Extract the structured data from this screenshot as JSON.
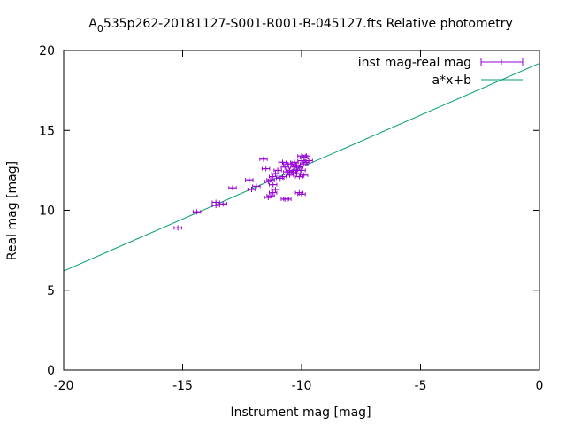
{
  "chart_data": {
    "type": "scatter",
    "title": {
      "prefix": "A",
      "subscript": "0",
      "rest": "535p262-20181127-S001-R001-B-045127.fts Relative photometry"
    },
    "xlabel": "Instrument mag [mag]",
    "ylabel": "Real mag [mag]",
    "xlim": [
      -20,
      0
    ],
    "ylim": [
      0,
      20
    ],
    "xticks": [
      -20,
      -15,
      -10,
      -5,
      0
    ],
    "yticks": [
      0,
      5,
      10,
      15,
      20
    ],
    "grid": false,
    "legend_position": "top-right",
    "colors": {
      "points": "#9400d3",
      "fit": "#009e73",
      "axes": "#000000"
    },
    "series": [
      {
        "name": "inst mag-real mag",
        "kind": "points-with-xerror",
        "points": [
          [
            -15.2,
            8.9
          ],
          [
            -14.4,
            9.9
          ],
          [
            -13.6,
            10.3
          ],
          [
            -13.6,
            10.5
          ],
          [
            -13.3,
            10.4
          ],
          [
            -12.9,
            11.4
          ],
          [
            -12.2,
            11.9
          ],
          [
            -12.1,
            11.3
          ],
          [
            -11.9,
            11.5
          ],
          [
            -11.6,
            13.2
          ],
          [
            -11.5,
            12.6
          ],
          [
            -11.4,
            10.8
          ],
          [
            -11.3,
            10.9
          ],
          [
            -11.4,
            11.8
          ],
          [
            -11.3,
            11.9
          ],
          [
            -11.2,
            11.6
          ],
          [
            -11.2,
            12.1
          ],
          [
            -11.2,
            11.1
          ],
          [
            -11.1,
            11.3
          ],
          [
            -11.1,
            12.3
          ],
          [
            -11.0,
            12.5
          ],
          [
            -10.9,
            12.0
          ],
          [
            -10.8,
            12.1
          ],
          [
            -10.8,
            13.0
          ],
          [
            -10.7,
            12.7
          ],
          [
            -10.7,
            10.7
          ],
          [
            -10.6,
            10.7
          ],
          [
            -10.6,
            12.4
          ],
          [
            -10.6,
            12.9
          ],
          [
            -10.5,
            12.5
          ],
          [
            -10.5,
            12.2
          ],
          [
            -10.4,
            12.9
          ],
          [
            -10.4,
            12.4
          ],
          [
            -10.3,
            12.7
          ],
          [
            -10.3,
            13.0
          ],
          [
            -10.2,
            12.5
          ],
          [
            -10.2,
            12.3
          ],
          [
            -10.1,
            12.1
          ],
          [
            -10.1,
            11.1
          ],
          [
            -10.0,
            11.0
          ],
          [
            -10.1,
            12.7
          ],
          [
            -10.0,
            13.4
          ],
          [
            -10.0,
            13.1
          ],
          [
            -9.9,
            13.3
          ],
          [
            -9.9,
            12.9
          ],
          [
            -9.9,
            12.2
          ],
          [
            -9.8,
            13.4
          ],
          [
            -9.8,
            13.0
          ],
          [
            -9.7,
            13.1
          ],
          [
            -10.0,
            12.5
          ],
          [
            -10.2,
            12.8
          ]
        ],
        "xerr": 0.12
      },
      {
        "name": "a*x+b",
        "kind": "line",
        "x": [
          -20,
          0
        ],
        "y": [
          6.2,
          19.2
        ]
      }
    ]
  }
}
